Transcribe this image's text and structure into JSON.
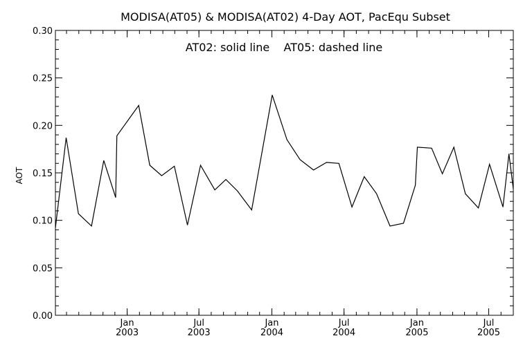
{
  "chart_data": {
    "type": "line",
    "title": "MODISA(AT05) & MODISA(AT02) 4-Day AOT, PacEqu Subset",
    "annotation": "AT02: solid line    AT05: dashed line",
    "ylabel": "AOT",
    "xlabel": "",
    "ylim": [
      0.0,
      0.3
    ],
    "xlim": [
      "2002-07-04",
      "2005-09-01"
    ],
    "grid": false,
    "y_ticks": [
      "0.00",
      "0.05",
      "0.10",
      "0.15",
      "0.20",
      "0.25",
      "0.30"
    ],
    "x_ticks": [
      {
        "date": "2003-01-01",
        "label_top": "Jan",
        "label_bottom": "2003"
      },
      {
        "date": "2003-07-01",
        "label_top": "Jul",
        "label_bottom": "2003"
      },
      {
        "date": "2004-01-01",
        "label_top": "Jan",
        "label_bottom": "2004"
      },
      {
        "date": "2004-07-01",
        "label_top": "Jul",
        "label_bottom": "2004"
      },
      {
        "date": "2005-01-01",
        "label_top": "Jan",
        "label_bottom": "2005"
      },
      {
        "date": "2005-07-01",
        "label_top": "Jul",
        "label_bottom": "2005"
      }
    ],
    "series": [
      {
        "name": "AT02",
        "style": "solid",
        "color": "#000000",
        "points": [
          [
            "2002-07-04",
            0.092
          ],
          [
            "2002-07-31",
            0.187
          ],
          [
            "2002-08-31",
            0.107
          ],
          [
            "2002-10-03",
            0.094
          ],
          [
            "2002-11-03",
            0.163
          ],
          [
            "2002-12-03",
            0.124
          ],
          [
            "2002-12-06",
            0.189
          ],
          [
            "2003-01-30",
            0.221
          ],
          [
            "2003-02-27",
            0.158
          ],
          [
            "2003-03-29",
            0.147
          ],
          [
            "2003-04-30",
            0.157
          ],
          [
            "2003-06-02",
            0.095
          ],
          [
            "2003-07-05",
            0.158
          ],
          [
            "2003-08-10",
            0.132
          ],
          [
            "2003-09-07",
            0.143
          ],
          [
            "2003-10-06",
            0.131
          ],
          [
            "2003-11-11",
            0.111
          ],
          [
            "2004-01-02",
            0.232
          ],
          [
            "2004-02-08",
            0.185
          ],
          [
            "2004-03-12",
            0.164
          ],
          [
            "2004-04-15",
            0.153
          ],
          [
            "2004-05-18",
            0.161
          ],
          [
            "2004-06-18",
            0.16
          ],
          [
            "2004-07-21",
            0.114
          ],
          [
            "2004-08-21",
            0.146
          ],
          [
            "2004-09-21",
            0.128
          ],
          [
            "2004-10-25",
            0.094
          ],
          [
            "2004-11-28",
            0.097
          ],
          [
            "2004-12-28",
            0.137
          ],
          [
            "2005-01-02",
            0.177
          ],
          [
            "2005-02-07",
            0.176
          ],
          [
            "2005-03-06",
            0.149
          ],
          [
            "2005-04-04",
            0.177
          ],
          [
            "2005-05-03",
            0.128
          ],
          [
            "2005-06-05",
            0.113
          ],
          [
            "2005-07-03",
            0.159
          ],
          [
            "2005-08-06",
            0.114
          ],
          [
            "2005-08-21",
            0.17
          ],
          [
            "2005-09-01",
            0.133
          ]
        ]
      }
    ]
  }
}
